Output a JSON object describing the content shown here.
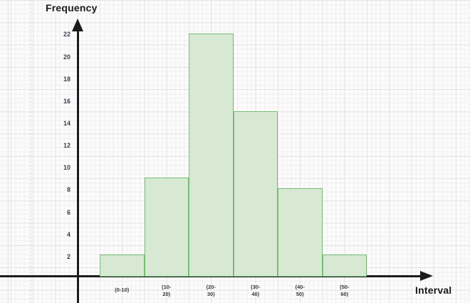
{
  "chart_data": {
    "type": "bar",
    "title": "",
    "xlabel": "Interval",
    "ylabel": "Frequency",
    "categories": [
      "(0-10)",
      "(10-20)",
      "(20-30)",
      "(30-40)",
      "(40-50)",
      "(50-60)"
    ],
    "category_display_lines": [
      [
        "(0-10)"
      ],
      [
        "(10-",
        "20)"
      ],
      [
        "(20-",
        "30)"
      ],
      [
        "(30-",
        "40)"
      ],
      [
        "(40-",
        "50)"
      ],
      [
        "(50-",
        "60)"
      ]
    ],
    "values": [
      2,
      9,
      22,
      15,
      8,
      2
    ],
    "ylim": [
      0,
      22
    ],
    "ytick_step": 2,
    "yticks": [
      2,
      4,
      6,
      8,
      10,
      12,
      14,
      16,
      18,
      20,
      22
    ],
    "grid": "on",
    "legend": "none",
    "colors": {
      "bar_fill": "#d7e9d3",
      "bar_stroke": "#76bd76",
      "axis": "#1c1c1c",
      "tick_label": "#3f3f52",
      "category_label": "#3b3b3b",
      "grid_major": "#e5e2e2",
      "grid_minor": "#f3f1f1"
    }
  }
}
